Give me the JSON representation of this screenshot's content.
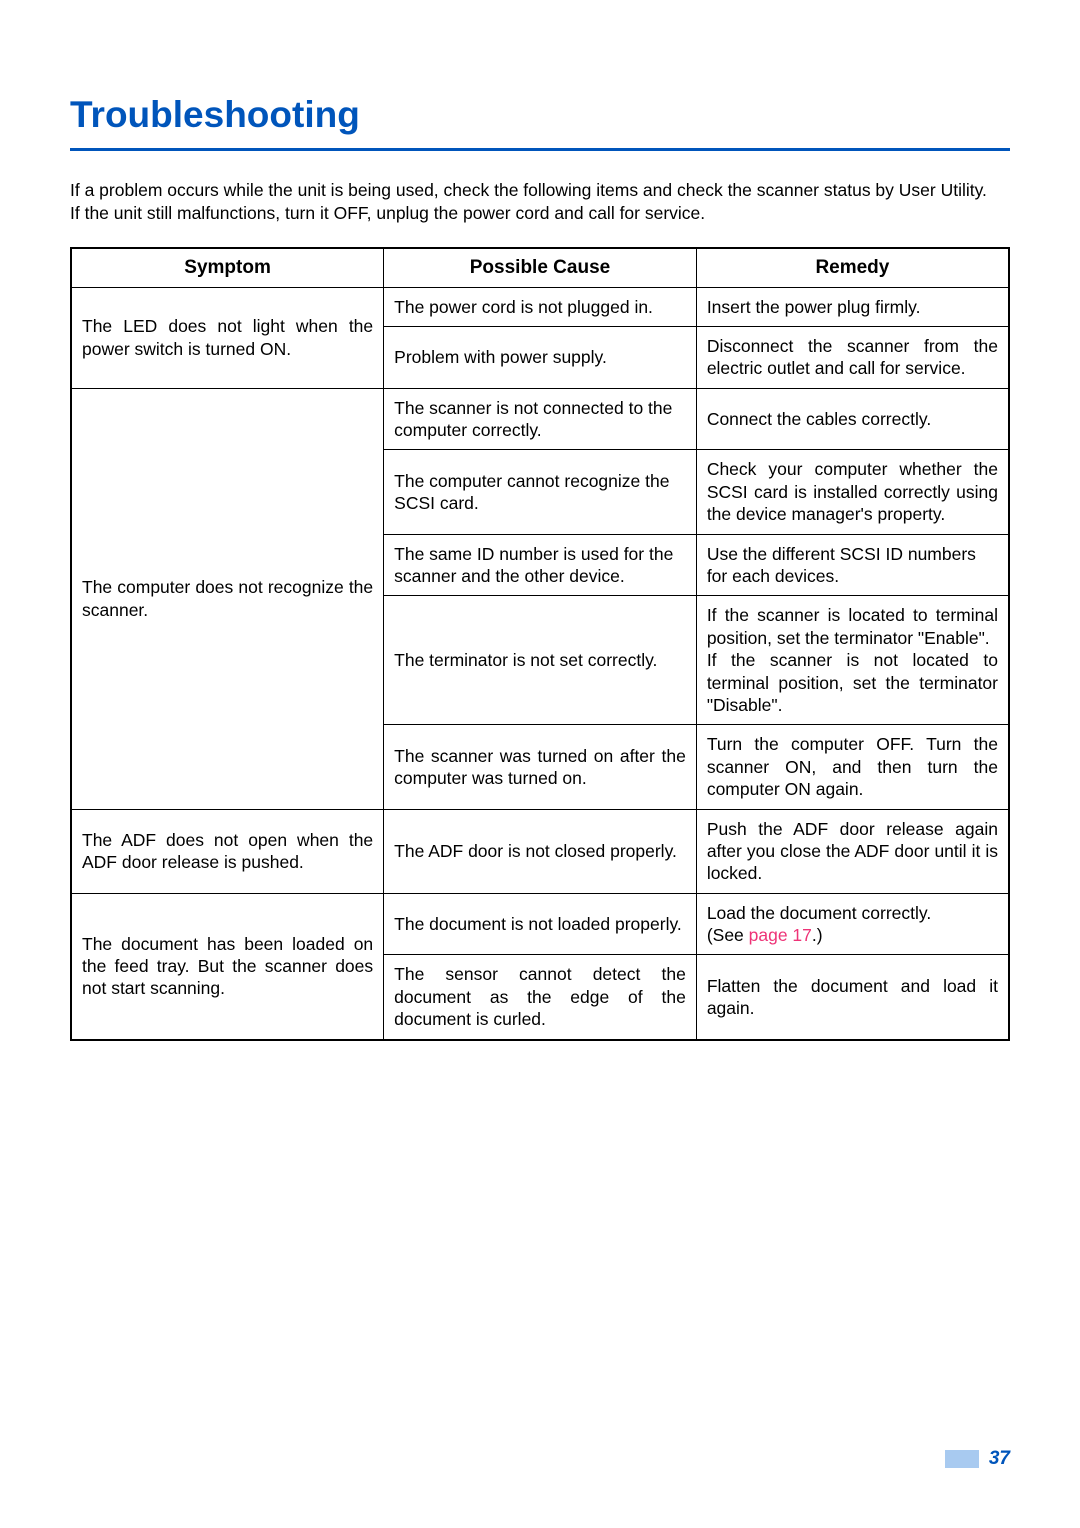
{
  "colors": {
    "blue": "#0055bb",
    "link_pink": "#ee3377",
    "page_box_bg": "#a8caf0",
    "text": "#000000",
    "bg": "#ffffff"
  },
  "title": "Troubleshooting",
  "intro_line1": "If a problem occurs while the unit is being used, check the following items and check the scanner status by User Utility.",
  "intro_line2": "If the unit still malfunctions, turn it OFF, unplug the power cord and call for service.",
  "columns": [
    "Symptom",
    "Possible Cause",
    "Remedy"
  ],
  "rows": [
    {
      "symptom": "The LED does not light when the power switch is turned ON.",
      "symptom_rowspan": 2,
      "cause": "The power cord is not plugged in.",
      "remedy": "Insert the power plug firmly."
    },
    {
      "cause": "Problem with power supply.",
      "remedy": "Disconnect the scanner from the electric outlet and call for service."
    },
    {
      "symptom": "The computer does not recognize the scanner.",
      "symptom_rowspan": 5,
      "cause": "The scanner is not connected to the computer correctly.",
      "remedy": "Connect the cables correctly."
    },
    {
      "cause": "The computer cannot recognize the SCSI card.",
      "remedy": "Check your computer whether the SCSI card is installed correctly using the device manager's property."
    },
    {
      "cause": "The same ID number is used for the scanner and the other device.",
      "remedy": "Use the different SCSI ID numbers for each devices."
    },
    {
      "cause": "The terminator is not set correctly.",
      "remedy": "If the scanner is located to terminal position, set the terminator \"Enable\".\nIf the scanner is not located to terminal position, set the terminator \"Disable\"."
    },
    {
      "cause": "The scanner was turned on after the computer was turned on.",
      "remedy": "Turn the computer OFF. Turn the scanner ON, and then turn the computer ON again."
    },
    {
      "symptom": "The ADF does not open when the ADF door release is pushed.",
      "symptom_rowspan": 1,
      "cause": "The ADF door is not closed properly.",
      "remedy": "Push the ADF door release again after you close the ADF door until it is locked."
    },
    {
      "symptom": "The document has been loaded on the feed tray. But the scanner does not start scanning.",
      "symptom_rowspan": 2,
      "cause": "The document is not loaded properly.",
      "remedy_pre": "Load the document correctly.\n(See ",
      "remedy_link": "page 17",
      "remedy_post": ".)"
    },
    {
      "cause": "The sensor cannot detect the document as the edge of the document is curled.",
      "remedy": "Flatten the document and load it again."
    }
  ],
  "page_number": "37"
}
